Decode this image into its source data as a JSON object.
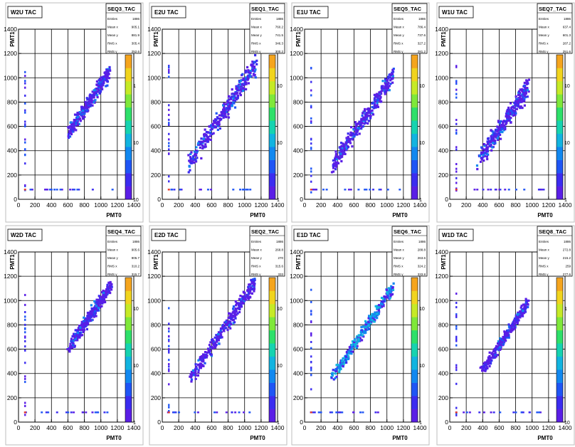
{
  "canvas": {
    "background": "#ffffff",
    "frame_color": "#bdbdbd"
  },
  "chart_data": [
    {
      "type": "heatmap",
      "title": "W2U TAC",
      "xlabel": "PMT0",
      "ylabel": "PMT1",
      "xlim": [
        0,
        1400
      ],
      "ylim": [
        0,
        1400
      ],
      "xticks": [
        "0",
        "200",
        "400",
        "600",
        "800",
        "1000",
        "1200",
        "1400"
      ],
      "yticks": [
        "0",
        "200",
        "400",
        "600",
        "800",
        "1000",
        "1200",
        "1400"
      ],
      "zscale": "log",
      "zticks": [
        "1",
        "10",
        "10"
      ],
      "grid": true,
      "stats": {
        "name": "SEQ3_TAC",
        "rows": [
          [
            "Entries",
            "1886"
          ],
          [
            "Mean x",
            "905.1"
          ],
          [
            "Mean y",
            "881.9"
          ],
          [
            "RMS x",
            "305.4"
          ],
          [
            "RMS y",
            "252.6"
          ]
        ]
      },
      "distribution": {
        "mean_x": 905.1,
        "mean_y": 881.9,
        "rms_x": 305.4,
        "rms_y": 252.6,
        "band_x": [
          600,
          1110
        ],
        "band_offset": -60,
        "band_width": 45
      }
    },
    {
      "type": "heatmap",
      "title": "E2U TAC",
      "xlabel": "PMT0",
      "ylabel": "PMT1",
      "xlim": [
        0,
        1400
      ],
      "ylim": [
        0,
        1400
      ],
      "xticks": [
        "0",
        "200",
        "400",
        "600",
        "800",
        "1000",
        "1200",
        "1400"
      ],
      "yticks": [
        "0",
        "200",
        "400",
        "600",
        "800",
        "1000",
        "1200",
        "1400"
      ],
      "zscale": "log",
      "zticks": [
        "10",
        "10",
        "1"
      ],
      "grid": true,
      "stats": {
        "name": "SEQ1_TAC",
        "rows": [
          [
            "Entries",
            "1886"
          ],
          [
            "Mean x",
            "760.2"
          ],
          [
            "Mean y",
            "741.5"
          ],
          [
            "RMS x",
            "346.3"
          ],
          [
            "RMS y",
            "300.2"
          ]
        ]
      },
      "distribution": {
        "mean_x": 760.2,
        "mean_y": 741.5,
        "rms_x": 346.3,
        "rms_y": 300.2,
        "band_x": [
          320,
          1140
        ],
        "band_offset": -30,
        "band_width": 55
      }
    },
    {
      "type": "heatmap",
      "title": "E1U TAC",
      "xlabel": "PMT0",
      "ylabel": "PMT1",
      "xlim": [
        0,
        1400
      ],
      "ylim": [
        0,
        1400
      ],
      "xticks": [
        "0",
        "200",
        "400",
        "600",
        "800",
        "1000",
        "1200",
        "1400"
      ],
      "yticks": [
        "0",
        "200",
        "400",
        "600",
        "800",
        "1000",
        "1200",
        "1400"
      ],
      "zscale": "log",
      "zticks": [
        "10",
        "10",
        "1"
      ],
      "grid": true,
      "stats": {
        "name": "SEQ5_TAC",
        "rows": [
          [
            "Entries",
            "1886"
          ],
          [
            "Mean x",
            "786.4"
          ],
          [
            "Mean y",
            "737.6"
          ],
          [
            "RMS x",
            "327.2"
          ],
          [
            "RMS y",
            "281.2"
          ]
        ]
      },
      "distribution": {
        "mean_x": 786.4,
        "mean_y": 737.6,
        "rms_x": 327.2,
        "rms_y": 281.2,
        "band_x": [
          330,
          1080
        ],
        "band_offset": -60,
        "band_width": 50
      }
    },
    {
      "type": "heatmap",
      "title": "W1U TAC",
      "xlabel": "PMT0",
      "ylabel": "PMT1",
      "xlim": [
        0,
        1400
      ],
      "ylim": [
        0,
        1400
      ],
      "xticks": [
        "0",
        "200",
        "400",
        "600",
        "800",
        "1000",
        "1200",
        "1400"
      ],
      "yticks": [
        "0",
        "200",
        "400",
        "600",
        "800",
        "1000",
        "1200",
        "1400"
      ],
      "zscale": "log",
      "zticks": [
        "10",
        "10",
        "1"
      ],
      "grid": true,
      "stats": {
        "name": "SEQ7_TAC",
        "rows": [
          [
            "Entries",
            "1886"
          ],
          [
            "Mean x",
            "637.4"
          ],
          [
            "Mean y",
            "601.3"
          ],
          [
            "RMS x",
            "287.2"
          ],
          [
            "RMS y",
            "251.6"
          ]
        ]
      },
      "distribution": {
        "mean_x": 637.4,
        "mean_y": 601.3,
        "rms_x": 287.2,
        "rms_y": 251.6,
        "band_x": [
          330,
          960
        ],
        "band_offset": -30,
        "band_width": 55
      }
    },
    {
      "type": "heatmap",
      "title": "W2D TAC",
      "xlabel": "PMT0",
      "ylabel": "PMT1",
      "xlim": [
        0,
        1400
      ],
      "ylim": [
        0,
        1400
      ],
      "xticks": [
        "0",
        "200",
        "400",
        "600",
        "800",
        "1000",
        "1200",
        "1400"
      ],
      "yticks": [
        "0",
        "200",
        "400",
        "600",
        "800",
        "1000",
        "1200",
        "1400"
      ],
      "zscale": "log",
      "zticks": [
        "10",
        "10",
        "1"
      ],
      "grid": true,
      "stats": {
        "name": "SEQ4_TAC",
        "rows": [
          [
            "Entries",
            "1886"
          ],
          [
            "Mean x",
            "905.6"
          ],
          [
            "Mean y",
            "905.7"
          ],
          [
            "RMS x",
            "310.2"
          ],
          [
            "RMS y",
            "315.7"
          ]
        ]
      },
      "distribution": {
        "mean_x": 905.6,
        "mean_y": 905.7,
        "rms_x": 310.2,
        "rms_y": 315.7,
        "band_x": [
          600,
          1130
        ],
        "band_offset": 0,
        "band_width": 40
      }
    },
    {
      "type": "heatmap",
      "title": "E2D TAC",
      "xlabel": "PMT0",
      "ylabel": "PMT1",
      "xlim": [
        0,
        1400
      ],
      "ylim": [
        0,
        1400
      ],
      "xticks": [
        "0",
        "200",
        "400",
        "600",
        "800",
        "1000",
        "1200",
        "1400"
      ],
      "yticks": [
        "0",
        "200",
        "400",
        "600",
        "800",
        "1000",
        "1200",
        "1400"
      ],
      "zscale": "log",
      "zticks": [
        "10",
        "10",
        "1"
      ],
      "grid": true,
      "stats": {
        "name": "SEQ2_TAC",
        "rows": [
          [
            "Entries",
            "1886"
          ],
          [
            "Mean x",
            "268.8"
          ],
          [
            "Mean y",
            "270"
          ],
          [
            "RMS x",
            "315.6"
          ],
          [
            "RMS y",
            "333"
          ]
        ]
      },
      "distribution": {
        "mean_x": 268.8,
        "mean_y": 270,
        "rms_x": 315.6,
        "rms_y": 333,
        "band_x": [
          340,
          1120
        ],
        "band_offset": 20,
        "band_width": 45
      }
    },
    {
      "type": "heatmap",
      "title": "E1D TAC",
      "xlabel": "PMT0",
      "ylabel": "PMT1",
      "xlim": [
        0,
        1400
      ],
      "ylim": [
        0,
        1400
      ],
      "xticks": [
        "0",
        "200",
        "400",
        "600",
        "800",
        "1000",
        "1200",
        "1400"
      ],
      "yticks": [
        "0",
        "200",
        "400",
        "600",
        "800",
        "1000",
        "1200",
        "1400"
      ],
      "zscale": "log",
      "zticks": [
        "10",
        "10",
        "1"
      ],
      "grid": true,
      "stats": {
        "name": "SEQ6_TAC",
        "rows": [
          [
            "Entries",
            "1886"
          ],
          [
            "Mean x",
            "288.8"
          ],
          [
            "Mean y",
            "263.6"
          ],
          [
            "RMS x",
            "324.2"
          ],
          [
            "RMS y",
            "333.8"
          ]
        ]
      },
      "distribution": {
        "mean_x": 288.8,
        "mean_y": 263.6,
        "rms_x": 324.2,
        "rms_y": 333.8,
        "band_x": [
          320,
          1080
        ],
        "band_offset": 30,
        "band_width": 35
      }
    },
    {
      "type": "heatmap",
      "title": "W1D TAC",
      "xlabel": "PMT0",
      "ylabel": "PMT1",
      "xlim": [
        0,
        1400
      ],
      "ylim": [
        0,
        1400
      ],
      "xticks": [
        "0",
        "200",
        "400",
        "600",
        "800",
        "1000",
        "1200",
        "1400"
      ],
      "yticks": [
        "0",
        "200",
        "400",
        "600",
        "800",
        "1000",
        "1200",
        "1400"
      ],
      "zscale": "log",
      "zticks": [
        "10",
        "1"
      ],
      "grid": true,
      "stats": {
        "name": "SEQ8_TAC",
        "rows": [
          [
            "Entries",
            "1886"
          ],
          [
            "Mean x",
            "272.8"
          ],
          [
            "Mean y",
            "215.2"
          ],
          [
            "RMS x",
            "259"
          ],
          [
            "RMS y",
            "277.6"
          ]
        ]
      },
      "distribution": {
        "mean_x": 272.8,
        "mean_y": 215.2,
        "rms_x": 259,
        "rms_y": 277.6,
        "band_x": [
          380,
          950
        ],
        "band_offset": 30,
        "band_width": 35
      }
    }
  ]
}
